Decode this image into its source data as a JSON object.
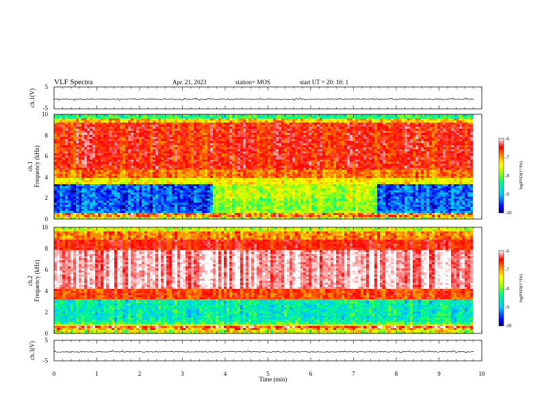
{
  "header": {
    "title": "VLF Spectra",
    "date": "Apr. 21, 2023",
    "station": "station= MOS",
    "start_ut": "start  UT =   20: 10: 1"
  },
  "chart_data": {
    "type": "heatmap",
    "xlabel": "Time (min)",
    "x_ticks": [
      "0",
      "1",
      "2",
      "3",
      "4",
      "5",
      "6",
      "7",
      "8",
      "9",
      "10"
    ],
    "xlim": [
      0,
      10
    ],
    "data_end_min": 9.83,
    "panels": [
      {
        "name": "ch.1(V)",
        "kind": "waveform",
        "ylabel": "ch.1(V)",
        "ylim": [
          -5,
          5
        ],
        "y_ticks": [
          "5",
          "-5"
        ],
        "trace_level": -0.6
      },
      {
        "name": "ch.1",
        "kind": "spectrogram",
        "ylabel": "ch.1 Frequency (kHz)",
        "ylabel_lines": [
          "ch.1",
          "Frequency (kHz)"
        ],
        "ylim": [
          0,
          10
        ],
        "y_ticks": [
          "0",
          "2",
          "4",
          "6",
          "8",
          "10"
        ],
        "enhanced_interval_min": [
          3.7,
          7.55
        ],
        "colorbar": {
          "label": "log(PSD)(V²/Hz)",
          "range": [
            -10,
            -6
          ],
          "ticks": [
            "-6",
            "-7",
            "-8",
            "-9",
            "-10"
          ]
        }
      },
      {
        "name": "ch.2",
        "kind": "spectrogram",
        "ylabel": "ch.2 Frequency (kHz)",
        "ylabel_lines": [
          "ch.2",
          "Frequency (kHz)"
        ],
        "ylim": [
          0,
          10
        ],
        "y_ticks": [
          "0",
          "2",
          "4",
          "6",
          "8",
          "10"
        ],
        "colorbar": {
          "label": "log(PSD)(V²/Hz)",
          "range": [
            -10,
            -6
          ],
          "ticks": [
            "-6",
            "-7",
            "-8",
            "-9",
            "-10"
          ]
        }
      },
      {
        "name": "ch.3(V)",
        "kind": "waveform",
        "ylabel": "ch.3(V)",
        "ylim": [
          -5,
          5
        ],
        "y_ticks": [
          "5",
          "-5"
        ],
        "trace_level": -0.6
      }
    ],
    "colors": {
      "colormap": [
        "#000080",
        "#0000ff",
        "#00c8ff",
        "#00ff90",
        "#7fff00",
        "#ffff00",
        "#ff8000",
        "#ff0000",
        "#ffffff"
      ]
    }
  }
}
